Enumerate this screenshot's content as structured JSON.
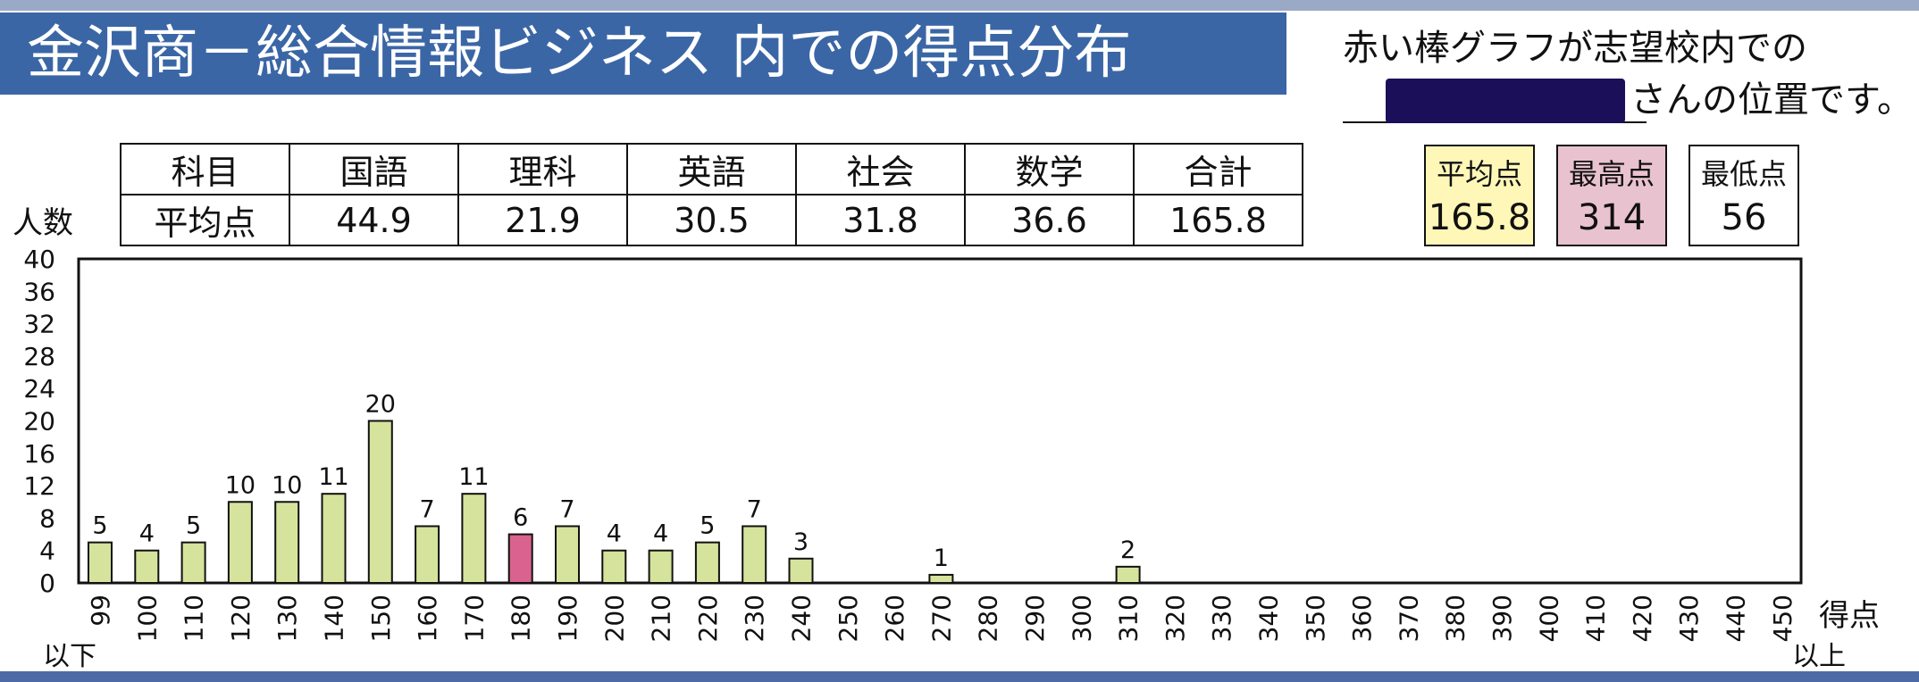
{
  "title": "金沢商－総合情報ビジネス 内での得点分布",
  "note": {
    "line1": "赤い棒グラフが志望校内での",
    "line2_suffix": "さんの位置です。"
  },
  "averages_table": {
    "header_label": "科目",
    "row_label": "平均点",
    "columns": [
      {
        "subject": "国語",
        "average": "44.9"
      },
      {
        "subject": "理科",
        "average": "21.9"
      },
      {
        "subject": "英語",
        "average": "30.5"
      },
      {
        "subject": "社会",
        "average": "31.8"
      },
      {
        "subject": "数学",
        "average": "36.6"
      },
      {
        "subject": "合計",
        "average": "165.8"
      }
    ]
  },
  "stats": {
    "average": {
      "label": "平均点",
      "value": "165.8",
      "color": "#fff7b8"
    },
    "max": {
      "label": "最高点",
      "value": "314",
      "color": "#e9c2d0"
    },
    "min": {
      "label": "最低点",
      "value": "56",
      "color": "#ffffff"
    }
  },
  "chart_data": {
    "type": "bar",
    "ylabel": "人数",
    "xlabel": "得点",
    "x_low_note": "以下",
    "x_high_note": "以上",
    "ylim": [
      0,
      40
    ],
    "yticks": [
      0,
      4,
      8,
      12,
      16,
      20,
      24,
      28,
      32,
      36,
      40
    ],
    "categories": [
      "99",
      "100",
      "110",
      "120",
      "130",
      "140",
      "150",
      "160",
      "170",
      "180",
      "190",
      "200",
      "210",
      "220",
      "230",
      "240",
      "250",
      "260",
      "270",
      "280",
      "290",
      "300",
      "310",
      "320",
      "330",
      "340",
      "350",
      "360",
      "370",
      "380",
      "390",
      "400",
      "410",
      "420",
      "430",
      "440",
      "450"
    ],
    "values": [
      5,
      4,
      5,
      10,
      10,
      11,
      20,
      7,
      11,
      6,
      7,
      4,
      4,
      5,
      7,
      3,
      0,
      0,
      1,
      0,
      0,
      0,
      2,
      0,
      0,
      0,
      0,
      0,
      0,
      0,
      0,
      0,
      0,
      0,
      0,
      0,
      0
    ],
    "highlight_index": 9,
    "bar_color": "#d5e39c",
    "highlight_color": "#d9638e",
    "grid": false
  }
}
